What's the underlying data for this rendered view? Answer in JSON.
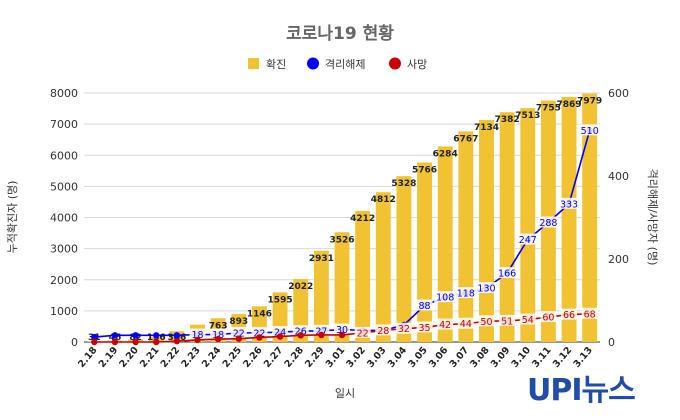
{
  "chart_data": {
    "type": "bar+line",
    "title": "코로나19 현황",
    "xlabel": "일시",
    "ylabel_left": "누적확진자 (명)",
    "ylabel_right": "격리해제/사망자 (명)",
    "ylim_left": [
      0,
      8000
    ],
    "ylim_right": [
      0,
      600
    ],
    "yticks_left": [
      "0",
      "1000",
      "2000",
      "3000",
      "4000",
      "5000",
      "6000",
      "7000",
      "8000"
    ],
    "yticks_right": [
      "0",
      "200",
      "400",
      "600"
    ],
    "grid": true,
    "legend_position": "top",
    "categories": [
      "2.18",
      "2.19",
      "2.20",
      "2.21",
      "2.22",
      "2.23",
      "2.24",
      "2.25",
      "2.26",
      "2.27",
      "2.28",
      "2.29",
      "3.01",
      "3.02",
      "3.03",
      "3.04",
      "3.05",
      "3.06",
      "3.07",
      "3.08",
      "3.09",
      "3.10",
      "3.11",
      "3.12",
      "3.13"
    ],
    "series": [
      {
        "name": "확진",
        "type": "bar",
        "axis": "left",
        "color": "#F1C232",
        "values": [
          31,
          46,
          82,
          156,
          346,
          556,
          763,
          893,
          1146,
          1595,
          2022,
          2931,
          3526,
          4212,
          4812,
          5328,
          5766,
          6284,
          6767,
          7134,
          7382,
          7513,
          7755,
          7869,
          7979
        ],
        "labels": [
          "31",
          "46",
          "82",
          "156",
          "346",
          "",
          "763",
          "893",
          "1146",
          "1595",
          "2022",
          "2931",
          "3526",
          "4212",
          "4812",
          "5328",
          "5766",
          "6284",
          "6767",
          "7134",
          "7382",
          "7513",
          "7755",
          "7869",
          "7979"
        ]
      },
      {
        "name": "격리해제",
        "type": "line",
        "axis": "right",
        "color": "#0000FF",
        "values": [
          12,
          16,
          16,
          16,
          16,
          18,
          18,
          22,
          22,
          24,
          26,
          27,
          30,
          28,
          28,
          41,
          88,
          108,
          118,
          130,
          166,
          247,
          288,
          333,
          510
        ],
        "labels": [
          "",
          "",
          "",
          "",
          "",
          "18",
          "18",
          "22",
          "22",
          "24",
          "26",
          "27",
          "30",
          "",
          "",
          "",
          "88",
          "108",
          "118",
          "130",
          "166",
          "247",
          "288",
          "333",
          "510"
        ]
      },
      {
        "name": "사망",
        "type": "line",
        "axis": "right",
        "color": "#CC0000",
        "values": [
          0,
          0,
          0,
          0,
          2,
          5,
          7,
          8,
          11,
          13,
          16,
          17,
          17,
          22,
          28,
          32,
          35,
          42,
          44,
          50,
          51,
          54,
          60,
          66,
          68
        ],
        "labels": [
          "",
          "",
          "",
          "",
          "",
          "",
          "",
          "",
          "",
          "",
          "",
          "",
          "",
          "22",
          "28",
          "32",
          "35",
          "42",
          "44",
          "50",
          "51",
          "54",
          "60",
          "66",
          "68"
        ]
      }
    ]
  },
  "logo": {
    "upi": "UPI",
    "news": "뉴스"
  }
}
